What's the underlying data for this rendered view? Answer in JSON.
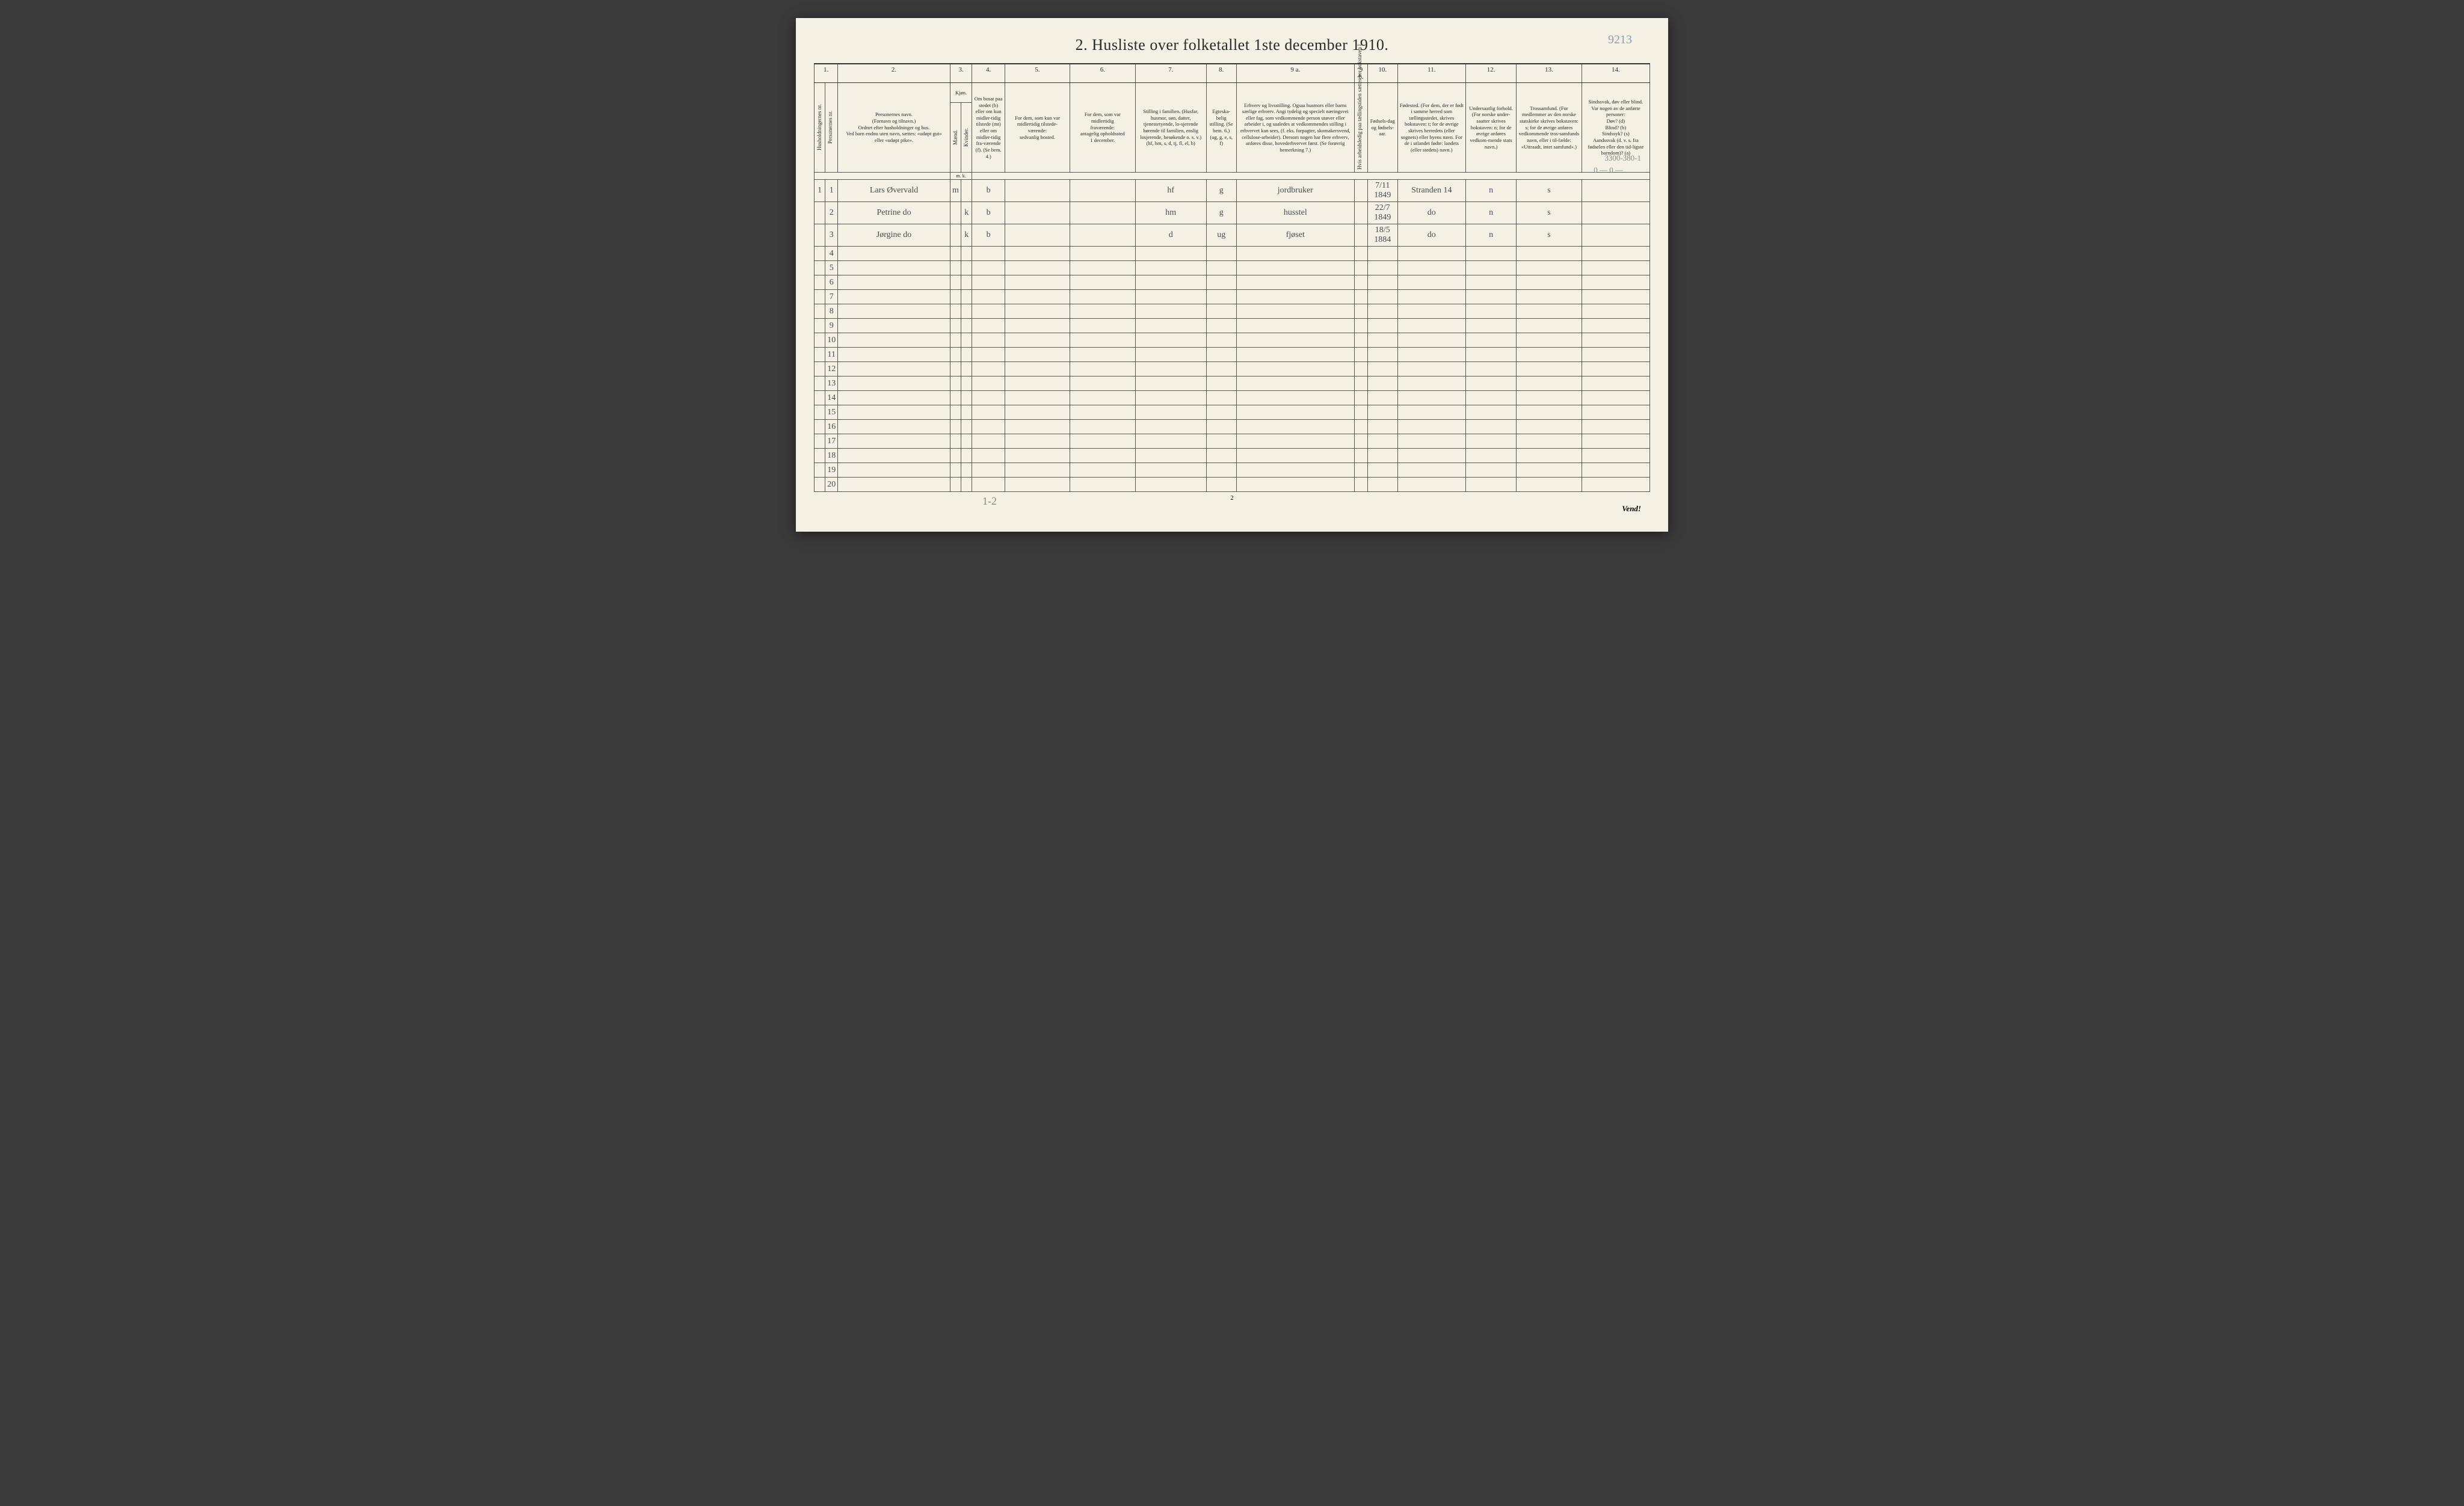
{
  "page_reference": "9213",
  "title": "2.  Husliste over folketallet 1ste december 1910.",
  "annotations": {
    "top_right": "3300-380-1",
    "below_right": "0 — 0 —",
    "bottom_bracket": "1-2"
  },
  "footer": {
    "page_num": "2",
    "turn": "Vend!"
  },
  "col_numbers": [
    "1.",
    "2.",
    "3.",
    "4.",
    "5.",
    "6.",
    "7.",
    "8.",
    "9 a.",
    "9 b.",
    "10.",
    "11.",
    "12.",
    "13.",
    "14."
  ],
  "headers": {
    "c1a": "Husholdningernes nr.",
    "c1b": "Personernes nr.",
    "c2": "Personernes navn.\n(Fornavn og tilnavn.)\nOrdnet efter husholdninger og hus.\nVed barn endnu uten navn, sættes: «udøpt gut»\neller «udøpt pike».",
    "c3": "Kjøn.",
    "c3a": "Mænd.",
    "c3b": "Kvinder.",
    "c3mk": "m.  k.",
    "c4": "Om bosat paa stedet (b) eller om kun midler-tidig tilstede (mt) eller om midler-tidig fra-værende (f). (Se bem. 4.)",
    "c5": "For dem, som kun var\nmidlertidig tilstede-\nværende:\nsedvanlig bosted.",
    "c6": "For dem, som var\nmidlertidig\nfraværende:\nantagelig opholdssted\n1 december.",
    "c7": "Stilling i familien.\n(Husfar, husmor, søn, datter, tjenestetyende, lo-sjerende hørende til familien, enslig losjerende, besøkende o. s. v.)\n(hf, hm, s, d, tj, fl, el, b)",
    "c8": "Egteska-belig stilling.\n(Se bem. 6.)\n(ug, g, e, s, f)",
    "c9a": "Erhverv og livsstilling.\nOgsaa husmors eller barns særlige erhverv. Angi tydelig og specielt næringsvei eller fag, som vedkommende person utøver eller arbeider i, og saaledes at vedkommendes stilling i erhvervet kan sees, (f. eks. forpagter, skomakersvend, cellulose-arbeider). Dersom nogen har flere erhverv, anføres disse, hovederhvervet først.\n(Se forøvrig bemerkning 7.)",
    "c9b": "Hvis arbeidsledig paa tællingstiden sættes her bokstaven l.",
    "c10": "Fødsels-dag og fødsels-aar.",
    "c11": "Fødested.\n(For dem, der er født i samme herred som tællingsstedet, skrives bokstaven: t; for de øvrige skrives herredets (eller sognets) eller byens navn. For de i utlandet fødte: landets (eller stedets) navn.)",
    "c12": "Undersaatlig forhold.\n(For norske under-saatter skrives bokstaven: n; for de øvrige anføres vedkom-mende stats navn.)",
    "c13": "Trossamfund.\n(For medlemmer av den norske statskirke skrives bokstaven: s; for de øvrige anføres vedkommende tros-samfunds navn, eller i til-fælde: «Uttraadt, intet samfund».)",
    "c14": "Sindssvak, døv eller blind.\nVar nogen av de anførte personer:\nDøv? (d)\nBlind? (b)\nSindssyk? (s)\nAandssvak (d. v. s. fra fødselen eller den tid-ligste barndom)? (a)"
  },
  "rows": [
    {
      "hh": "1",
      "pn": "1",
      "name": "Lars Øvervald",
      "sex_m": "m",
      "sex_k": "",
      "res": "b",
      "temp": "",
      "absent": "",
      "fam": "hf",
      "mar": "g",
      "occ": "jordbruker",
      "unemp": "",
      "dob": "7/11 1849",
      "birthplace": "Stranden 14",
      "nat": "n",
      "rel": "s",
      "dis": ""
    },
    {
      "hh": "",
      "pn": "2",
      "name": "Petrine   do",
      "sex_m": "",
      "sex_k": "k",
      "res": "b",
      "temp": "",
      "absent": "",
      "fam": "hm",
      "mar": "g",
      "occ": "husstel",
      "unemp": "",
      "dob": "22/7 1849",
      "birthplace": "do",
      "nat": "n",
      "rel": "s",
      "dis": ""
    },
    {
      "hh": "",
      "pn": "3",
      "name": "Jørgine   do",
      "sex_m": "",
      "sex_k": "k",
      "res": "b",
      "temp": "",
      "absent": "",
      "fam": "d",
      "mar": "ug",
      "occ": "fjøset",
      "unemp": "",
      "dob": "18/5 1884",
      "birthplace": "do",
      "nat": "n",
      "rel": "s",
      "dis": ""
    }
  ],
  "row_numbers": [
    "1",
    "2",
    "3",
    "4",
    "5",
    "6",
    "7",
    "8",
    "9",
    "10",
    "11",
    "12",
    "13",
    "14",
    "15",
    "16",
    "17",
    "18",
    "19",
    "20"
  ],
  "col_widths": {
    "c1a": 18,
    "c1b": 18,
    "c2": 190,
    "c3a": 16,
    "c3b": 16,
    "c4": 55,
    "c5": 110,
    "c6": 110,
    "c7": 120,
    "c8": 50,
    "c9a": 200,
    "c9b": 22,
    "c10": 50,
    "c11": 115,
    "c12": 85,
    "c13": 110,
    "c14": 115
  }
}
